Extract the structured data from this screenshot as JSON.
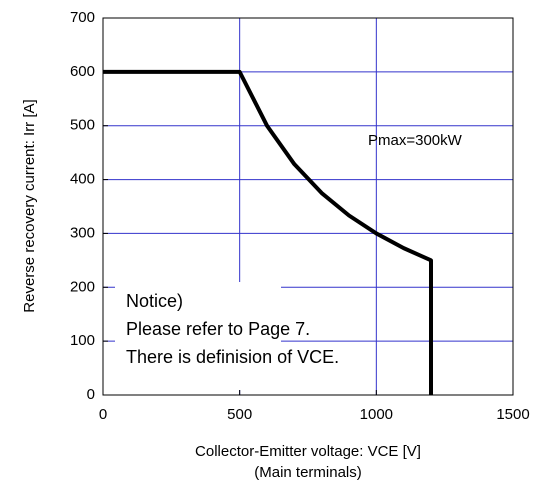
{
  "chart_data": {
    "type": "line",
    "x": [
      0,
      500,
      600,
      700,
      800,
      900,
      1000,
      1100,
      1200,
      1200
    ],
    "values": [
      600,
      600,
      500,
      428.6,
      375,
      333.3,
      300,
      272.7,
      250,
      0
    ],
    "color": "#000000",
    "xlim": [
      0,
      1500
    ],
    "xticks": [
      0,
      500,
      1000,
      1500
    ],
    "ylim": [
      0,
      700
    ],
    "yticks": [
      0,
      100,
      200,
      300,
      400,
      500,
      600,
      700
    ],
    "grid": true,
    "x_label": [
      "Collector-Emitter voltage: VCE [V]",
      "(Main terminals)"
    ],
    "y_label": "Reverse recovery current: Irr [A]",
    "annotations": [
      "Pmax=300kW",
      "Notice)",
      "Please refer to Page 7.",
      "There is definision of VCE."
    ]
  }
}
